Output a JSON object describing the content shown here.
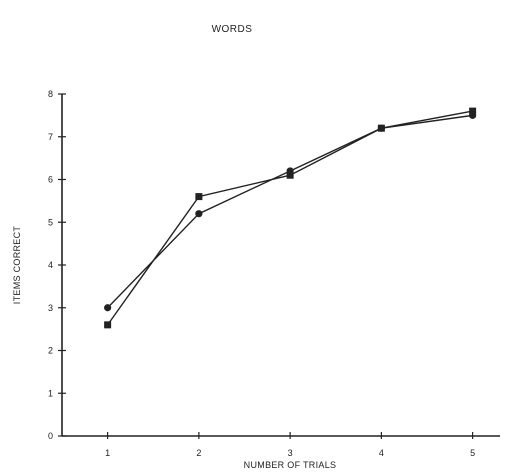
{
  "chart_data": {
    "type": "line",
    "title": "WORDS",
    "xlabel": "NUMBER OF TRIALS",
    "ylabel": "ITEMS CORRECT",
    "x": [
      1,
      2,
      3,
      4,
      5
    ],
    "xticks": [
      "1",
      "2",
      "3",
      "4",
      "5"
    ],
    "yticks": [
      "0",
      "1",
      "2",
      "3",
      "4",
      "5",
      "6",
      "7",
      "8"
    ],
    "xlim": [
      0.5,
      5.3
    ],
    "ylim": [
      0,
      8
    ],
    "grid": false,
    "series": [
      {
        "marker": "circle",
        "values": [
          3.0,
          5.2,
          6.2,
          7.2,
          7.5
        ]
      },
      {
        "marker": "square",
        "values": [
          2.6,
          5.6,
          6.1,
          7.2,
          7.6
        ]
      }
    ],
    "colors": {
      "line": "#222222",
      "axis": "#222222"
    }
  }
}
